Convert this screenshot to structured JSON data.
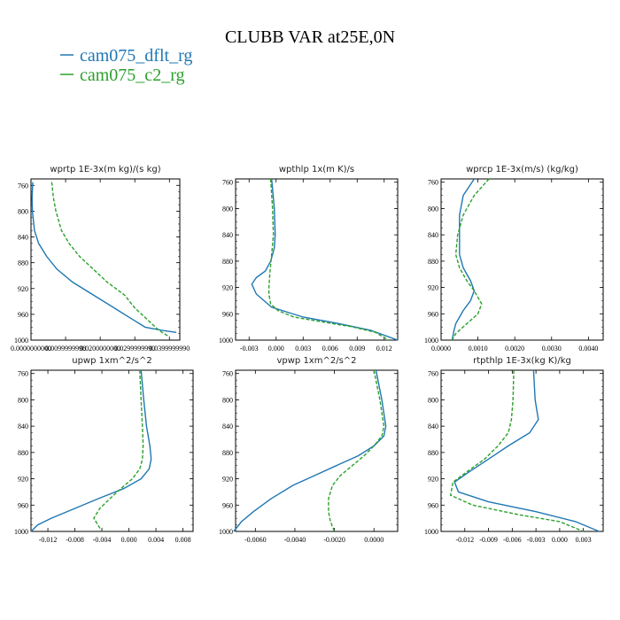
{
  "title": "CLUBB VAR at25E,0N",
  "legend": [
    {
      "label": "cam075_dflt_rg",
      "color": "#1f77b4"
    },
    {
      "label": "cam075_c2_rg",
      "color": "#2ca02c"
    }
  ],
  "chart_data": [
    {
      "type": "line",
      "title": "wprtp  1E-3x(m kg)/(s kg)",
      "xlim": [
        0,
        0.043
      ],
      "ylim": [
        1000,
        750
      ],
      "xticks": [
        0,
        0.01,
        0.02,
        0.03,
        0.04
      ],
      "xtick_labels": [
        "0.0000000000",
        "0.0099999998",
        "0.0200000000",
        "0.0299999990",
        "0.0399999990"
      ],
      "yticks": [
        760,
        800,
        840,
        880,
        920,
        960,
        1000
      ],
      "series": [
        {
          "name": "cam075_dflt_rg",
          "x": [
            0.0005,
            0.0003,
            0.0004,
            0.001,
            0.0022,
            0.0045,
            0.0075,
            0.012,
            0.018,
            0.024,
            0.03,
            0.033,
            0.038,
            0.042
          ],
          "y": [
            755,
            780,
            800,
            830,
            850,
            870,
            890,
            910,
            930,
            950,
            970,
            980,
            985,
            988
          ]
        },
        {
          "name": "cam075_c2_rg",
          "x": [
            0.006,
            0.0065,
            0.0072,
            0.0088,
            0.011,
            0.014,
            0.018,
            0.022,
            0.027,
            0.03,
            0.032,
            0.034,
            0.037,
            0.04
          ],
          "y": [
            755,
            780,
            800,
            830,
            850,
            870,
            890,
            910,
            930,
            950,
            960,
            970,
            985,
            995
          ]
        }
      ]
    },
    {
      "type": "line",
      "title": "wpthlp  1x(m K)/s",
      "xlim": [
        -0.0045,
        0.0135
      ],
      "ylim": [
        1000,
        755
      ],
      "xticks": [
        -0.003,
        0,
        0.003,
        0.006,
        0.009,
        0.012
      ],
      "xtick_labels": [
        "-0.003",
        "0.000",
        "0.003",
        "0.006",
        "0.009",
        "0.012"
      ],
      "yticks": [
        760,
        800,
        840,
        880,
        920,
        960,
        1000
      ],
      "series": [
        {
          "name": "cam075_dflt_rg",
          "x": [
            -0.0005,
            -0.0002,
            -0.0001,
            -0.0002,
            -0.0006,
            -0.0012,
            -0.0022,
            -0.0027,
            -0.0022,
            -0.0005,
            0.003,
            0.007,
            0.0105,
            0.0135
          ],
          "y": [
            755,
            800,
            840,
            860,
            880,
            895,
            905,
            915,
            930,
            950,
            965,
            975,
            985,
            1000
          ]
        },
        {
          "name": "cam075_c2_rg",
          "x": [
            -0.0006,
            -0.0004,
            -0.0003,
            -0.0005,
            -0.0007,
            -0.0008,
            -0.0008,
            -0.0006,
            0.0002,
            0.002,
            0.005,
            0.0085,
            0.011,
            0.0125
          ],
          "y": [
            755,
            800,
            840,
            870,
            900,
            920,
            930,
            945,
            955,
            965,
            972,
            980,
            988,
            1000
          ]
        }
      ]
    },
    {
      "type": "line",
      "title": "wprcp  1E-3x(m/s) (kg/kg)",
      "xlim": [
        0,
        0.0044
      ],
      "ylim": [
        1000,
        755
      ],
      "xticks": [
        0,
        0.001,
        0.002,
        0.003,
        0.004
      ],
      "xtick_labels": [
        "0.0000",
        "0.0010",
        "0.0020",
        "0.0030",
        "0.0040"
      ],
      "yticks": [
        760,
        800,
        840,
        880,
        920,
        960,
        1000
      ],
      "series": [
        {
          "name": "cam075_dflt_rg",
          "x": [
            0.0009,
            0.0006,
            0.0005,
            0.0005,
            0.0005,
            0.0006,
            0.0008,
            0.0009,
            0.0008,
            0.0006,
            0.0005,
            0.0004,
            0.00035,
            0.0003
          ],
          "y": [
            755,
            780,
            810,
            840,
            870,
            890,
            910,
            925,
            940,
            955,
            965,
            975,
            985,
            1000
          ]
        },
        {
          "name": "cam075_c2_rg",
          "x": [
            0.0013,
            0.0009,
            0.0006,
            0.00045,
            0.0004,
            0.0005,
            0.0007,
            0.0009,
            0.0011,
            0.001,
            0.0008,
            0.0006,
            0.0004,
            0.0003
          ],
          "y": [
            755,
            780,
            810,
            840,
            870,
            890,
            910,
            925,
            945,
            960,
            970,
            980,
            990,
            1000
          ]
        }
      ]
    },
    {
      "type": "line",
      "title": "upwp  1xm^2/s^2",
      "xlim": [
        -0.0145,
        0.0095
      ],
      "ylim": [
        1000,
        755
      ],
      "xticks": [
        -0.012,
        -0.008,
        -0.004,
        0,
        0.004,
        0.008
      ],
      "xtick_labels": [
        "-0.012",
        "-0.008",
        "-0.004",
        "0.000",
        "0.004",
        "0.008"
      ],
      "yticks": [
        760,
        800,
        840,
        880,
        920,
        960,
        1000
      ],
      "series": [
        {
          "name": "cam075_dflt_rg",
          "x": [
            0.0018,
            0.0022,
            0.0026,
            0.0031,
            0.0033,
            0.003,
            0.0018,
            -0.0008,
            -0.0045,
            -0.008,
            -0.0115,
            -0.0135,
            -0.0145
          ],
          "y": [
            755,
            800,
            840,
            870,
            890,
            905,
            920,
            935,
            950,
            965,
            980,
            990,
            1000
          ]
        },
        {
          "name": "cam075_c2_rg",
          "x": [
            0.0016,
            0.0018,
            0.002,
            0.0021,
            0.002,
            0.0016,
            0.0005,
            -0.0012,
            -0.0028,
            -0.0043,
            -0.0052,
            -0.0046,
            -0.004
          ],
          "y": [
            755,
            800,
            840,
            870,
            890,
            905,
            920,
            935,
            950,
            965,
            980,
            990,
            1000
          ]
        }
      ]
    },
    {
      "type": "line",
      "title": "vpwp  1xm^2/s^2",
      "xlim": [
        -0.007,
        0.0012
      ],
      "ylim": [
        1000,
        755
      ],
      "xticks": [
        -0.006,
        -0.004,
        -0.002,
        0
      ],
      "xtick_labels": [
        "-0.0060",
        "-0.0040",
        "-0.0020",
        "0.0000"
      ],
      "yticks": [
        760,
        800,
        840,
        880,
        920,
        960,
        1000
      ],
      "series": [
        {
          "name": "cam075_dflt_rg",
          "x": [
            0.0001,
            0.0004,
            0.0006,
            0.0005,
            0.0,
            -0.0008,
            -0.0019,
            -0.003,
            -0.0041,
            -0.0052,
            -0.0061,
            -0.0067,
            -0.0071
          ],
          "y": [
            755,
            800,
            840,
            855,
            870,
            885,
            900,
            915,
            930,
            950,
            970,
            985,
            1000
          ]
        },
        {
          "name": "cam075_c2_rg",
          "x": [
            0.0,
            0.0003,
            0.0005,
            0.0004,
            0.0,
            -0.0005,
            -0.0011,
            -0.0017,
            -0.0021,
            -0.0023,
            -0.0023,
            -0.0022,
            -0.002
          ],
          "y": [
            755,
            800,
            840,
            855,
            870,
            885,
            900,
            915,
            930,
            950,
            970,
            985,
            1000
          ]
        }
      ]
    },
    {
      "type": "line",
      "title": "rtpthlp  1E-3x(kg K)/kg",
      "xlim": [
        -0.015,
        0.0055
      ],
      "ylim": [
        1000,
        755
      ],
      "xticks": [
        -0.012,
        -0.009,
        -0.006,
        -0.003,
        0,
        0.003
      ],
      "xtick_labels": [
        "-0.012",
        "-0.009",
        "-0.006",
        "-0.003",
        "0.000",
        "0.003"
      ],
      "yticks": [
        760,
        800,
        840,
        880,
        920,
        960,
        1000
      ],
      "series": [
        {
          "name": "cam075_dflt_rg",
          "x": [
            -0.0033,
            -0.0031,
            -0.0027,
            -0.0038,
            -0.0065,
            -0.009,
            -0.0115,
            -0.0133,
            -0.0128,
            -0.009,
            -0.003,
            0.002,
            0.005
          ],
          "y": [
            755,
            800,
            830,
            850,
            870,
            890,
            910,
            925,
            940,
            955,
            970,
            985,
            1000
          ]
        },
        {
          "name": "cam075_c2_rg",
          "x": [
            -0.0058,
            -0.0059,
            -0.0061,
            -0.0065,
            -0.0078,
            -0.0095,
            -0.0118,
            -0.0135,
            -0.0138,
            -0.011,
            -0.005,
            0.0,
            0.003
          ],
          "y": [
            755,
            800,
            830,
            850,
            870,
            890,
            910,
            925,
            945,
            960,
            975,
            985,
            1000
          ]
        }
      ]
    }
  ]
}
